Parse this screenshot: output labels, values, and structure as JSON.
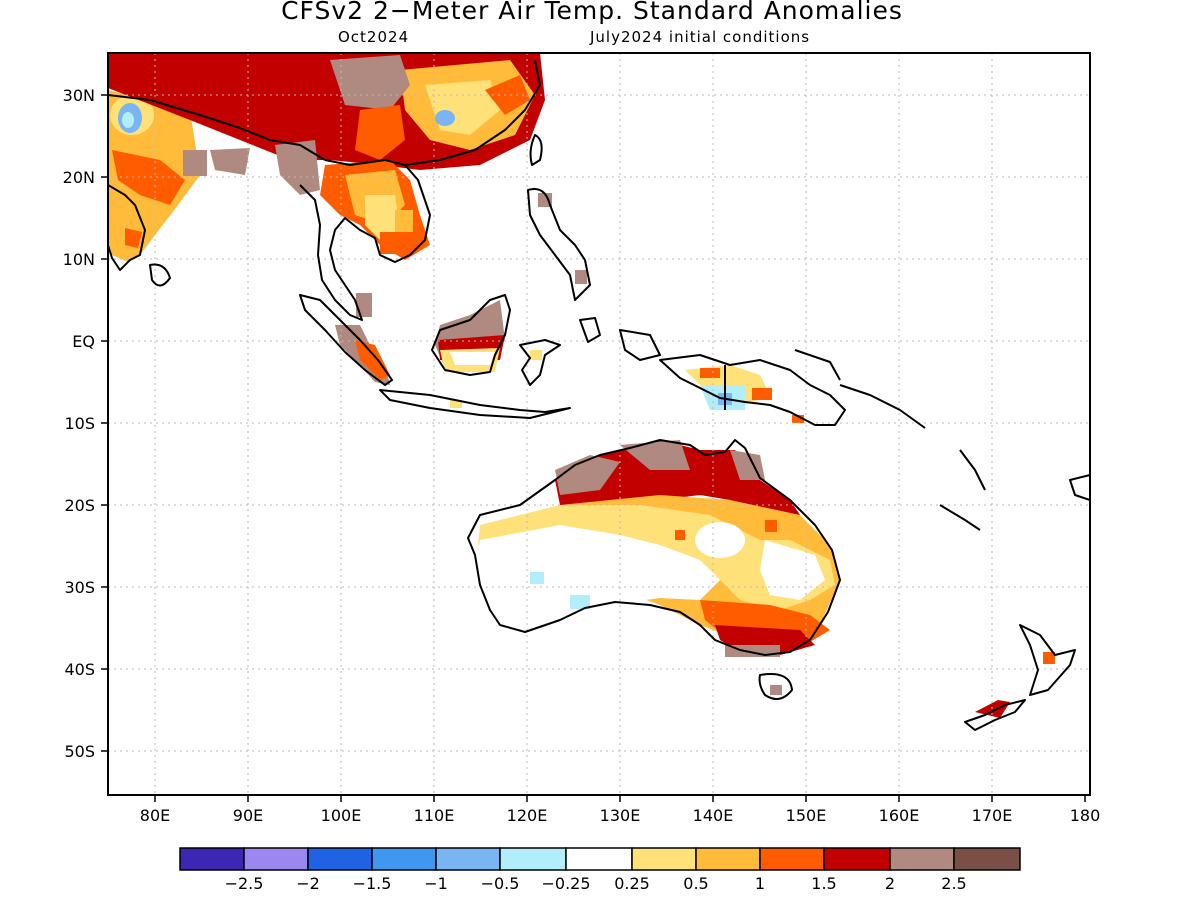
{
  "title": "CFSv2 2−Meter Air Temp. Standard Anomalies",
  "valid_month": "Oct2024",
  "initial_conditions": "July2024 initial conditions",
  "lat_labels": [
    "30N",
    "20N",
    "10N",
    "EQ",
    "10S",
    "20S",
    "30S",
    "40S",
    "50S"
  ],
  "lon_labels": [
    "80E",
    "90E",
    "100E",
    "110E",
    "120E",
    "130E",
    "140E",
    "150E",
    "160E",
    "170E",
    "180"
  ],
  "colorbar": {
    "colors": [
      "#3b27b4",
      "#9b87ee",
      "#1f62e2",
      "#3f97ee",
      "#79b5f3",
      "#b2eefa",
      "#ffffff",
      "#ffe17a",
      "#ffbb39",
      "#ff5c00",
      "#c20000",
      "#b08a80",
      "#7a5046"
    ],
    "labels": [
      "−2.5",
      "−2",
      "−1.5",
      "−1",
      "−0.5",
      "−0.25",
      "0.25",
      "0.5",
      "1",
      "1.5",
      "2",
      "2.5"
    ]
  }
}
